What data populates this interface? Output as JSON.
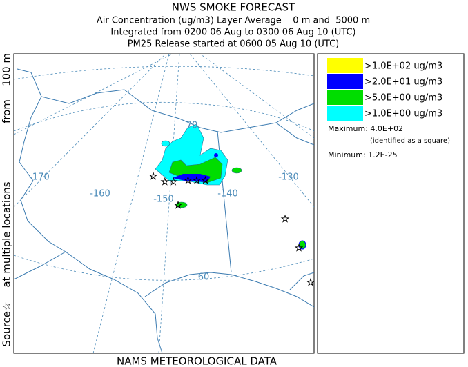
{
  "header": {
    "title": "NWS SMOKE FORECAST",
    "lines": [
      "Air Concentration (ug/m3) Layer Average    0 m and  5000 m",
      "Integrated from 0200 06 Aug to 0300 06 Aug 10 (UTC)",
      "PM25 Release started at 0600 05 Aug 10 (UTC)"
    ]
  },
  "side_label": [
    "Source☆",
    "at multiple locations",
    "from    100 m"
  ],
  "footer": "NAMS METEOROLOGICAL DATA",
  "map_labels": {
    "longitudes": [
      "-170",
      "-160",
      "-150",
      "-140",
      "-130"
    ],
    "latitudes": [
      "70",
      "60"
    ]
  },
  "legend": {
    "items": [
      {
        "label": ">1.0E+02 ug/m3",
        "color": "#ffff00"
      },
      {
        "label": ">2.0E+01 ug/m3",
        "color": "#0000ff"
      },
      {
        "label": ">5.0E+00 ug/m3",
        "color": "#00dd00"
      },
      {
        "label": ">1.0E+00 ug/m3",
        "color": "#00ffff"
      }
    ],
    "maximum": "Maximum: 4.0E+02",
    "maximum_note": "(identified as a square)",
    "minimum": "Minimum: 1.2E-25"
  }
}
